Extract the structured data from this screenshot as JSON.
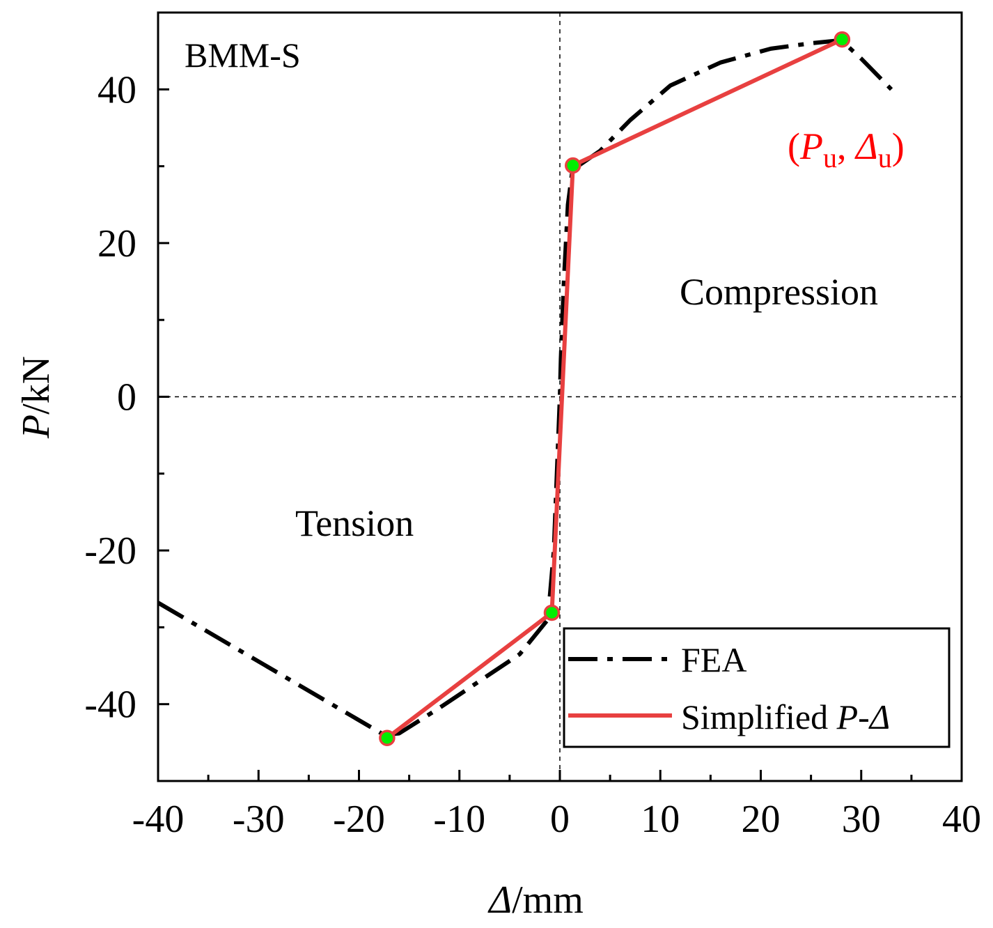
{
  "chart_data": {
    "type": "line",
    "title": "",
    "panel_label": "BMM-S",
    "xlabel": {
      "italic": "Δ",
      "rest": "/mm"
    },
    "ylabel": {
      "italic": "P",
      "rest": "/kN"
    },
    "xlim": [
      -40,
      40
    ],
    "ylim": [
      -50,
      50
    ],
    "xticks": [
      -40,
      -30,
      -20,
      -10,
      0,
      10,
      20,
      30,
      40
    ],
    "yticks": [
      -40,
      -20,
      0,
      20,
      40
    ],
    "xtick_labels": [
      "-40",
      "-30",
      "-20",
      "-10",
      "0",
      "10",
      "20",
      "30",
      "40"
    ],
    "ytick_labels": [
      "-40",
      "-20",
      "0",
      "20",
      "40"
    ],
    "x_minor_step": 5,
    "y_minor_step": 10,
    "grid": false,
    "reference_lines": {
      "x": 0,
      "y": 0,
      "style": "dashed"
    },
    "series": [
      {
        "name": "FEA",
        "style": "dash-dot",
        "color": "#000000",
        "x": [
          -40,
          -17.5,
          -16,
          -12,
          -8,
          -4,
          -1.2,
          -0.6,
          -0.3,
          0,
          0.1,
          0.25,
          0.4,
          0.6,
          0.8,
          1.2,
          2,
          4,
          7,
          11,
          16,
          21,
          25,
          28,
          30,
          33
        ],
        "y": [
          -26.8,
          -44,
          -43.8,
          -40.5,
          -37,
          -33.5,
          -29,
          -20,
          -10,
          0,
          5,
          10,
          15,
          20,
          25,
          29,
          30.2,
          32,
          36,
          40.5,
          43.5,
          45.3,
          46,
          46.4,
          44,
          40
        ]
      },
      {
        "name": "Simplified P-Δ",
        "style": "solid",
        "color": "#e84040",
        "x": [
          -17.2,
          -0.8,
          1.3,
          28.1
        ],
        "y": [
          -44.4,
          -28.1,
          30.1,
          46.5
        ]
      }
    ],
    "key_points": {
      "x": [
        -17.2,
        -0.8,
        1.3,
        28.1
      ],
      "y": [
        -44.4,
        -28.1,
        30.1,
        46.5
      ],
      "fill": "#00ee00",
      "stroke": "#e84040"
    },
    "annotations": {
      "compression": "Compression",
      "tension": "Tension",
      "ultimate_point": {
        "open": "(",
        "P": "P",
        "u1": "u",
        "comma": ", ",
        "D": "Δ",
        "u2": "u",
        "close": ")",
        "color": "#ff0000"
      }
    },
    "legend": {
      "position": "bottom-right",
      "entries": [
        {
          "label": "FEA"
        },
        {
          "label_plain": "Simplified ",
          "label_italic": "P",
          "label_sep": "-",
          "label_italic2": "Δ"
        }
      ]
    }
  }
}
